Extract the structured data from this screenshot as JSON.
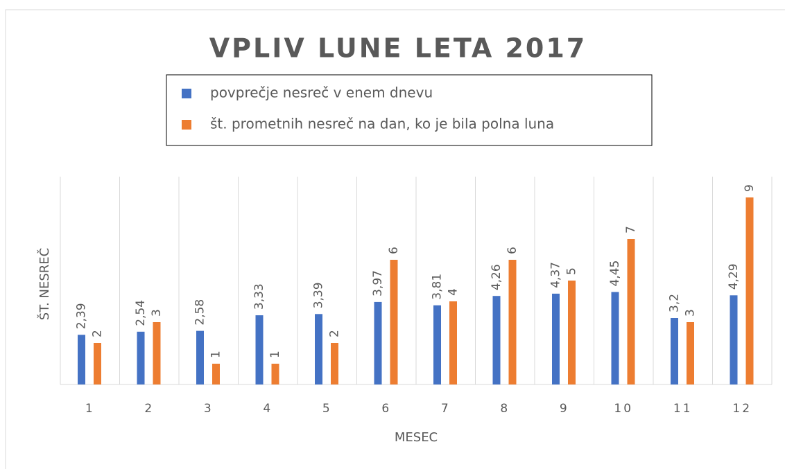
{
  "chart_data": {
    "type": "bar",
    "title": "VPLIV LUNE LETA 2017",
    "x_label": "MESEC",
    "y_label": "ŠT. NESREČ",
    "categories": [
      "1",
      "2",
      "3",
      "4",
      "5",
      "6",
      "7",
      "8",
      "9",
      "10",
      "11",
      "12"
    ],
    "series": [
      {
        "name": "povprečje nesreč v enem dnevu",
        "color": "#4472c4",
        "values": [
          2.39,
          2.54,
          2.58,
          3.33,
          3.39,
          3.97,
          3.81,
          4.26,
          4.37,
          4.45,
          3.2,
          4.29
        ],
        "value_labels": [
          "2,39",
          "2,54",
          "2,58",
          "3,33",
          "3,39",
          "3,97",
          "3,81",
          "4,26",
          "4,37",
          "4,45",
          "3,2",
          "4,29"
        ]
      },
      {
        "name": "št. prometnih nesreč na dan, ko je bila polna luna",
        "color": "#ed7d31",
        "values": [
          2,
          3,
          1,
          1,
          2,
          6,
          4,
          6,
          5,
          7,
          3,
          9
        ]
      }
    ],
    "ylim": [
      0,
      10
    ],
    "legend": "top"
  }
}
